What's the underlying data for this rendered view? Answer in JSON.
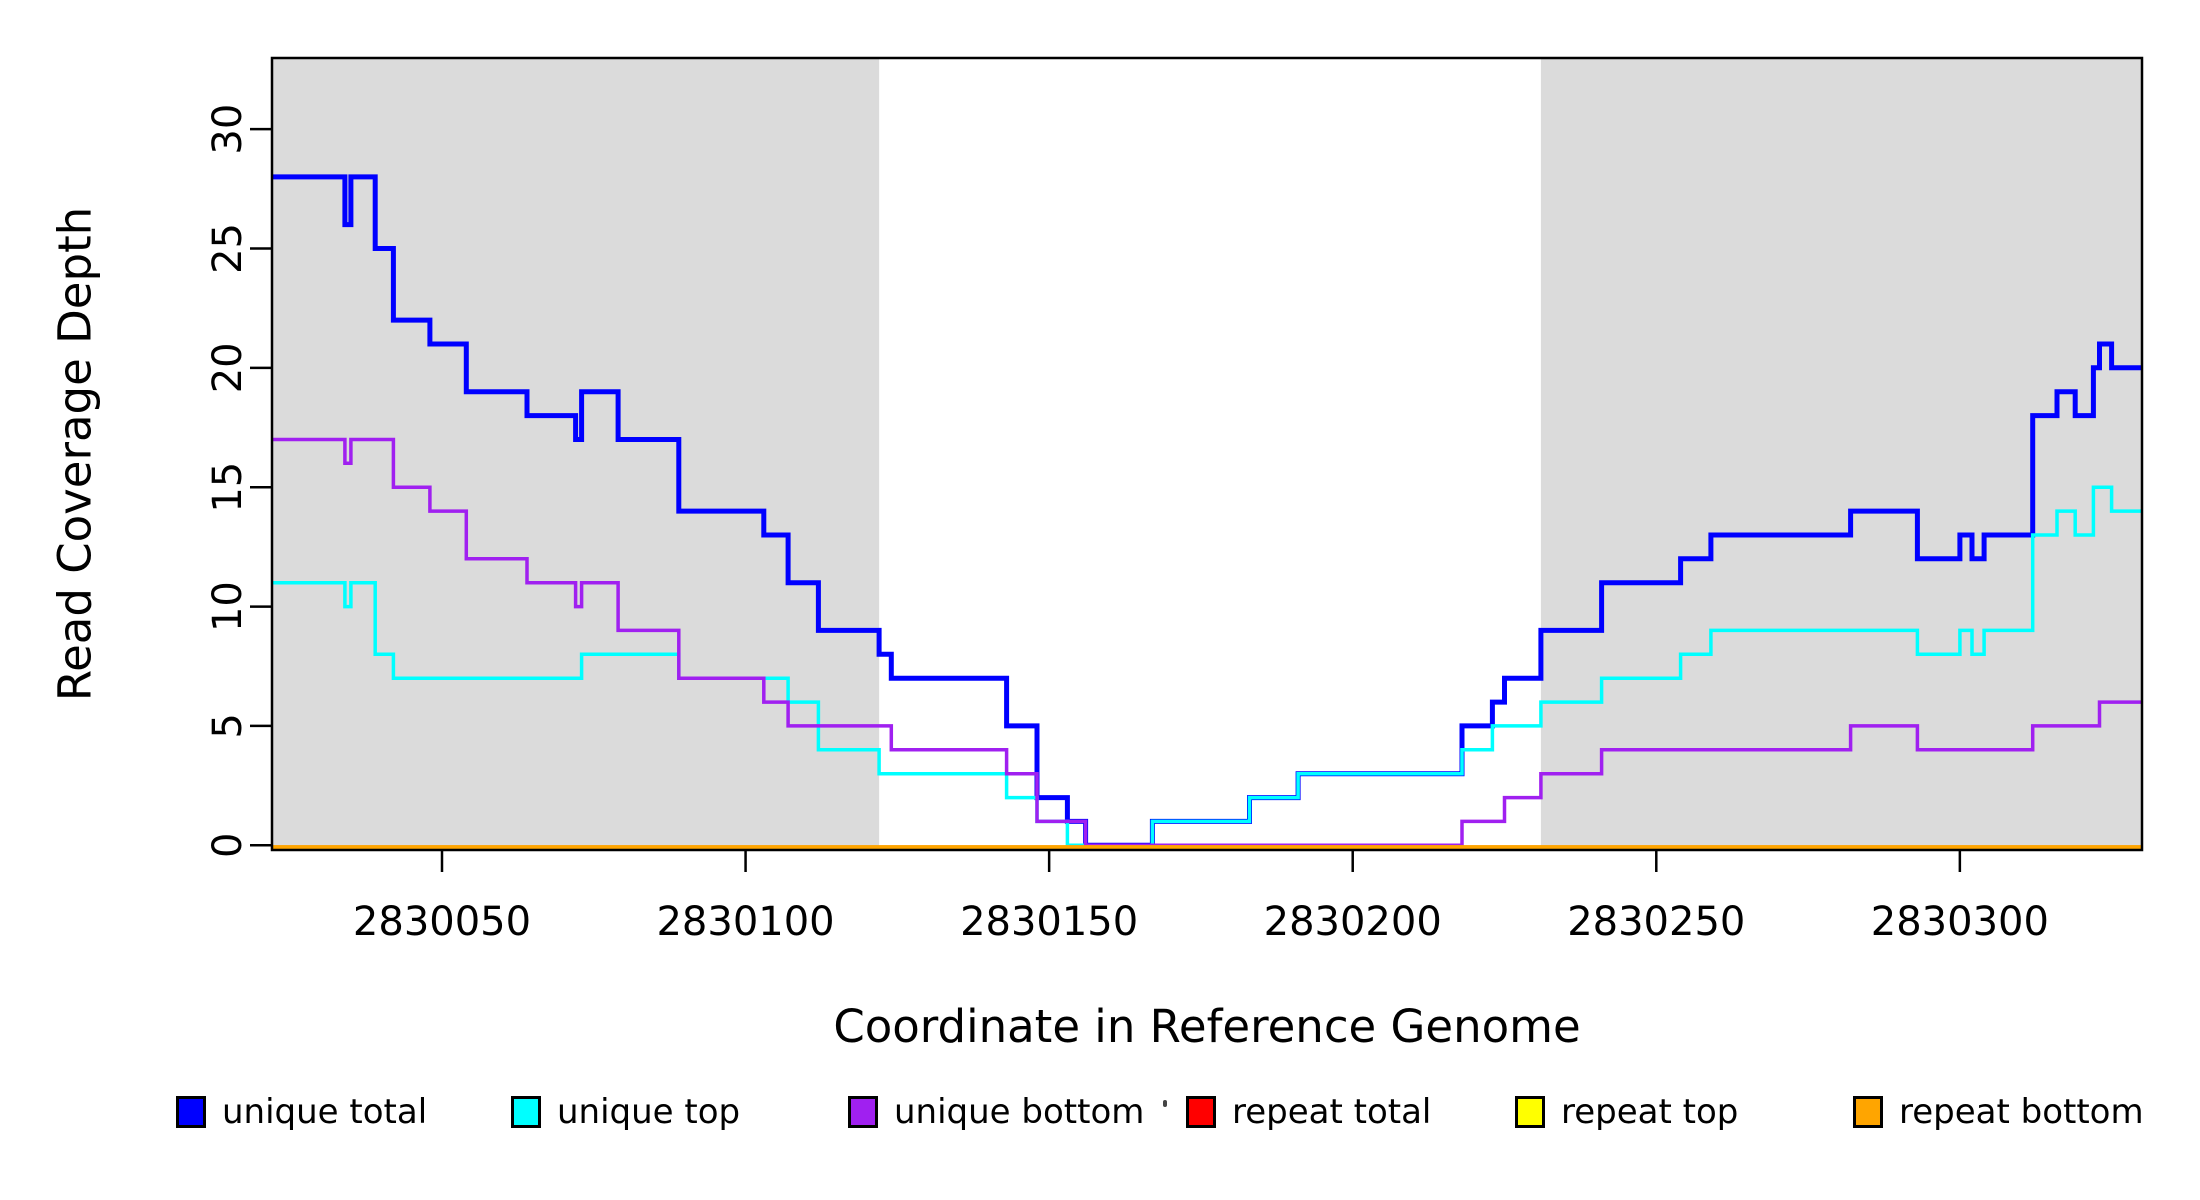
{
  "axes": {
    "x_label": "Coordinate in Reference Genome",
    "y_label": "Read Coverage Depth",
    "x_ticks": [
      2830050,
      2830100,
      2830150,
      2830200,
      2830250,
      2830300
    ],
    "y_ticks": [
      0,
      5,
      10,
      15,
      20,
      25,
      30
    ]
  },
  "chart_data": {
    "type": "line",
    "subtype": "step-after",
    "title": "",
    "xlabel": "Coordinate in Reference Genome",
    "ylabel": "Read Coverage Depth",
    "xlim": [
      2830022,
      2830330
    ],
    "ylim": [
      0,
      33
    ],
    "grid": false,
    "legend_position": "bottom",
    "shaded_regions": [
      {
        "x0": 2830022,
        "x1": 2830122,
        "color": "#DBDBDB"
      },
      {
        "x0": 2830231,
        "x1": 2830330,
        "color": "#DBDBDB"
      }
    ],
    "series": [
      {
        "name": "unique total",
        "color": "#0000FF",
        "points": [
          [
            2830022,
            28
          ],
          [
            2830034,
            26
          ],
          [
            2830035,
            28
          ],
          [
            2830039,
            25
          ],
          [
            2830042,
            22
          ],
          [
            2830048,
            21
          ],
          [
            2830054,
            19
          ],
          [
            2830064,
            18
          ],
          [
            2830072,
            17
          ],
          [
            2830073,
            19
          ],
          [
            2830079,
            17
          ],
          [
            2830089,
            14
          ],
          [
            2830103,
            13
          ],
          [
            2830107,
            11
          ],
          [
            2830112,
            9
          ],
          [
            2830122,
            8
          ],
          [
            2830124,
            7
          ],
          [
            2830143,
            5
          ],
          [
            2830148,
            2
          ],
          [
            2830153,
            1
          ],
          [
            2830156,
            0
          ],
          [
            2830167,
            1
          ],
          [
            2830183,
            2
          ],
          [
            2830191,
            3
          ],
          [
            2830218,
            5
          ],
          [
            2830223,
            6
          ],
          [
            2830225,
            7
          ],
          [
            2830231,
            9
          ],
          [
            2830241,
            11
          ],
          [
            2830254,
            12
          ],
          [
            2830259,
            13
          ],
          [
            2830282,
            14
          ],
          [
            2830293,
            12
          ],
          [
            2830300,
            13
          ],
          [
            2830302,
            12
          ],
          [
            2830304,
            13
          ],
          [
            2830312,
            18
          ],
          [
            2830316,
            19
          ],
          [
            2830319,
            18
          ],
          [
            2830322,
            20
          ],
          [
            2830323,
            21
          ],
          [
            2830325,
            20
          ]
        ]
      },
      {
        "name": "unique top",
        "color": "#00FFFF",
        "points": [
          [
            2830022,
            11
          ],
          [
            2830034,
            10
          ],
          [
            2830035,
            11
          ],
          [
            2830039,
            8
          ],
          [
            2830042,
            7
          ],
          [
            2830073,
            8
          ],
          [
            2830089,
            7
          ],
          [
            2830107,
            6
          ],
          [
            2830112,
            4
          ],
          [
            2830122,
            3
          ],
          [
            2830143,
            2
          ],
          [
            2830148,
            1
          ],
          [
            2830153,
            0
          ],
          [
            2830167,
            1
          ],
          [
            2830183,
            2
          ],
          [
            2830191,
            3
          ],
          [
            2830218,
            4
          ],
          [
            2830223,
            5
          ],
          [
            2830231,
            6
          ],
          [
            2830241,
            7
          ],
          [
            2830254,
            8
          ],
          [
            2830259,
            9
          ],
          [
            2830293,
            8
          ],
          [
            2830300,
            9
          ],
          [
            2830302,
            8
          ],
          [
            2830304,
            9
          ],
          [
            2830312,
            13
          ],
          [
            2830316,
            14
          ],
          [
            2830319,
            13
          ],
          [
            2830322,
            15
          ],
          [
            2830325,
            14
          ]
        ]
      },
      {
        "name": "unique bottom",
        "color": "#A020F0",
        "points": [
          [
            2830022,
            17
          ],
          [
            2830034,
            16
          ],
          [
            2830035,
            17
          ],
          [
            2830042,
            15
          ],
          [
            2830048,
            14
          ],
          [
            2830054,
            12
          ],
          [
            2830064,
            11
          ],
          [
            2830072,
            10
          ],
          [
            2830073,
            11
          ],
          [
            2830079,
            9
          ],
          [
            2830089,
            7
          ],
          [
            2830103,
            6
          ],
          [
            2830107,
            5
          ],
          [
            2830124,
            4
          ],
          [
            2830143,
            3
          ],
          [
            2830148,
            1
          ],
          [
            2830156,
            0
          ],
          [
            2830218,
            1
          ],
          [
            2830225,
            2
          ],
          [
            2830231,
            3
          ],
          [
            2830241,
            4
          ],
          [
            2830282,
            5
          ],
          [
            2830293,
            4
          ],
          [
            2830312,
            5
          ],
          [
            2830323,
            6
          ]
        ]
      },
      {
        "name": "repeat total",
        "color": "#FF0000",
        "points": [
          [
            2830022,
            0
          ]
        ]
      },
      {
        "name": "repeat top",
        "color": "#FFFF00",
        "points": [
          [
            2830022,
            0
          ]
        ]
      },
      {
        "name": "repeat bottom",
        "color": "#FFA500",
        "points": [
          [
            2830022,
            0
          ]
        ]
      }
    ]
  },
  "legend": {
    "items": [
      {
        "label": "unique total",
        "color": "#0000FF"
      },
      {
        "label": "unique top",
        "color": "#00FFFF"
      },
      {
        "label": "unique bottom",
        "color": "#A020F0"
      },
      {
        "label": "repeat total",
        "color": "#FF0000"
      },
      {
        "label": "repeat top",
        "color": "#FFFF00"
      },
      {
        "label": "repeat bottom",
        "color": "#FFA500"
      }
    ]
  },
  "colors": {
    "shading": "#DBDBDB",
    "axis": "#000000",
    "background": "#FFFFFF"
  }
}
